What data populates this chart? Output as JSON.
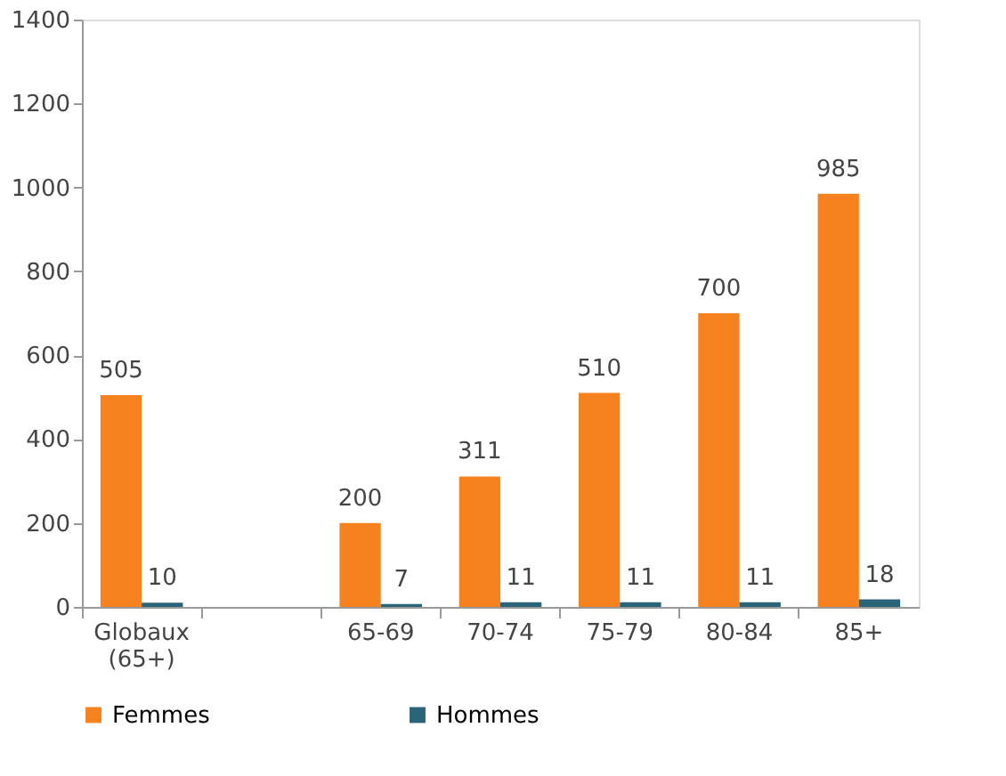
{
  "chart_data": {
    "type": "bar",
    "categories": [
      "Globaux (65+)",
      null,
      "65-69",
      "70-74",
      "75-79",
      "80-84",
      "85+"
    ],
    "series": [
      {
        "name": "Femmes",
        "color": "#f5821f",
        "values": [
          505,
          null,
          200,
          311,
          510,
          700,
          985
        ]
      },
      {
        "name": "Hommes",
        "color": "#2a6478",
        "values": [
          10,
          null,
          7,
          11,
          11,
          11,
          18
        ]
      }
    ],
    "ylim": [
      0,
      1400
    ],
    "yticks": [
      0,
      200,
      400,
      600,
      800,
      1000,
      1200,
      1400
    ],
    "grid": false,
    "legend": "bottom",
    "data_labels": true
  }
}
